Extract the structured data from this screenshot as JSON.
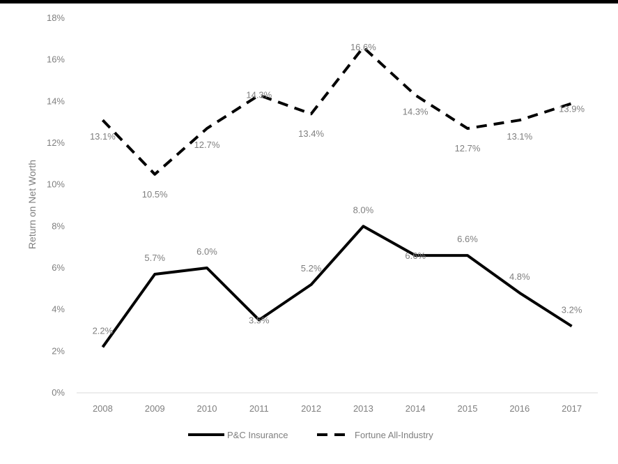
{
  "chart_data": {
    "type": "line",
    "title": "",
    "xlabel": "",
    "ylabel": "Return on Net Worth",
    "ylim": [
      0,
      18
    ],
    "y_ticks": [
      "0%",
      "2%",
      "4%",
      "6%",
      "8%",
      "10%",
      "12%",
      "14%",
      "16%",
      "18%"
    ],
    "categories": [
      "2008",
      "2009",
      "2010",
      "2011",
      "2012",
      "2013",
      "2014",
      "2015",
      "2016",
      "2017"
    ],
    "grid": false,
    "legend": "bottom-center",
    "series": [
      {
        "name": "P&C Insurance",
        "style": "solid",
        "color": "#000000",
        "values": [
          2.2,
          5.7,
          6.0,
          3.5,
          5.2,
          8.0,
          6.6,
          6.6,
          4.8,
          3.2
        ],
        "labels": [
          "2.2%",
          "5.7%",
          "6.0%",
          "3.5%",
          "5.2%",
          "8.0%",
          "6.6%",
          "6.6%",
          "4.8%",
          "3.2%"
        ]
      },
      {
        "name": "Fortune All-Industry",
        "style": "dashed",
        "color": "#000000",
        "values": [
          13.1,
          10.5,
          12.7,
          14.3,
          13.4,
          16.6,
          14.3,
          12.7,
          13.1,
          13.9
        ],
        "labels": [
          "13.1%",
          "10.5%",
          "12.7%",
          "14.3%",
          "13.4%",
          "16.6%",
          "14.3%",
          "12.7%",
          "13.1%",
          "13.9%"
        ]
      }
    ]
  }
}
